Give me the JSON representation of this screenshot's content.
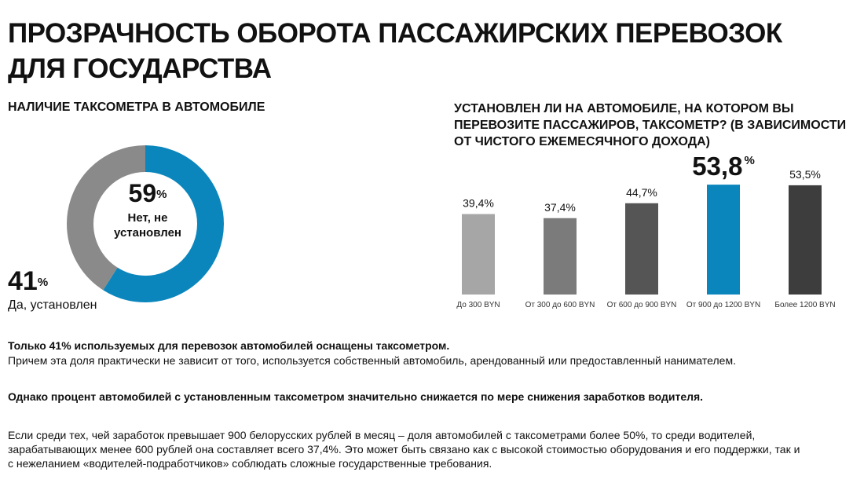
{
  "title_line1": "ПРОЗРАЧНОСТЬ ОБОРОТА ПАССАЖИРСКИХ ПЕРЕВОЗОК",
  "title_line2": "ДЛЯ ГОСУДАРСТВА",
  "left_subtitle": "НАЛИЧИЕ ТАКСОМЕТРА В АВТОМОБИЛЕ",
  "right_subtitle": "УСТАНОВЛЕН ЛИ НА АВТОМОБИЛЕ, НА КОТОРОМ ВЫ ПЕРЕВОЗИТЕ ПАССАЖИРОВ, ТАКСОМЕТР? (В ЗАВИСИМОСТИ ОТ  ЧИСТОГО ЕЖЕМЕСЯЧНОГО ДОХОДА)",
  "donut": {
    "main_value": "59",
    "main_label": "Нет, не установлен",
    "side_value": "41",
    "side_label": "Да, установлен",
    "percent_sign": "%"
  },
  "colors": {
    "blue": "#0a86bd",
    "gray": "#8a8a8a",
    "bar_light": "#a6a6a6",
    "bar_mid": "#7b7b7b",
    "bar_dark": "#555555",
    "bar_darkest": "#3d3d3d"
  },
  "chart_data": [
    {
      "type": "pie",
      "title": "НАЛИЧИЕ ТАКСОМЕТРА В АВТОМОБИЛЕ",
      "categories": [
        "Нет, не установлен",
        "Да, установлен"
      ],
      "values": [
        59,
        41
      ],
      "colors": [
        "#0a86bd",
        "#8a8a8a"
      ]
    },
    {
      "type": "bar",
      "title": "УСТАНОВЛЕН ЛИ НА АВТОМОБИЛЕ, НА КОТОРОМ ВЫ ПЕРЕВОЗИТЕ ПАССАЖИРОВ, ТАКСОМЕТР? (В ЗАВИСИМОСТИ ОТ  ЧИСТОГО ЕЖЕМЕСЯЧНОГО ДОХОДА)",
      "categories": [
        "До 300 BYN",
        "От 300 до 600 BYN",
        "От 600 до 900 BYN",
        "От 900 до 1200 BYN",
        "Более 1200 BYN"
      ],
      "values": [
        39.4,
        37.4,
        44.7,
        53.8,
        53.5
      ],
      "value_labels": [
        "39,4%",
        "37,4%",
        "44,7%",
        "53,8",
        "53,5%"
      ],
      "highlight_index": 3,
      "colors": [
        "#a6a6a6",
        "#7b7b7b",
        "#555555",
        "#0a86bd",
        "#3d3d3d"
      ],
      "ylim": [
        0,
        100
      ],
      "grid": false,
      "xlabel": "",
      "ylabel": ""
    }
  ],
  "text": {
    "p1_bold": "Только 41% используемых для перевозок автомобилей оснащены таксометром.",
    "p1": "Причем эта доля практически не зависит от того, используется собственный автомобиль, арендованный или предоставленный нанимателем.",
    "p2_bold": "Однако процент автомобилей с установленным таксометром значительно снижается по мере снижения заработков водителя.",
    "p3_line1": "Если среди тех, чей заработок превышает 900 белорусских рублей в месяц – доля автомобилей с таксометрами более  50%, то среди водителей,",
    "p3_line2": "зарабатывающих менее 600 рублей она составляет всего 37,4%. Это может быть связано как с высокой стоимостью оборудования и его поддержки, так и",
    "p3_line3": "с нежеланием «водителей-подработчиков» соблюдать сложные государственные требования."
  }
}
